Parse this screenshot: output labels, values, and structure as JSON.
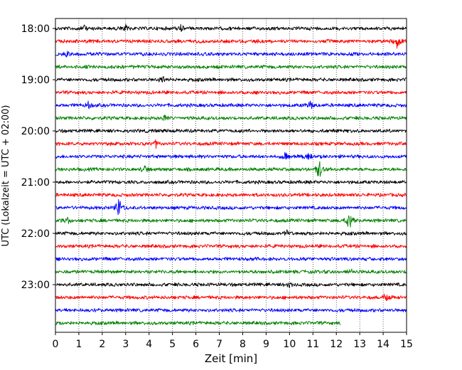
{
  "chart_data": {
    "type": "line",
    "title": "",
    "xlabel": "Zeit  [min]",
    "ylabel": "UTC (Lokalzeit = UTC + 02:00)",
    "xlim": [
      0,
      15
    ],
    "xticks": [
      0,
      1,
      2,
      3,
      4,
      5,
      6,
      7,
      8,
      9,
      10,
      11,
      12,
      13,
      14,
      15
    ],
    "xtick_labels": [
      "0",
      "1",
      "2",
      "3",
      "4",
      "5",
      "6",
      "7",
      "8",
      "9",
      "10",
      "11",
      "12",
      "13",
      "14",
      "15"
    ],
    "ytick_labels": [
      "18:00",
      "19:00",
      "20:00",
      "21:00",
      "22:00",
      "23:00"
    ],
    "grid": "vertical dotted",
    "color_cycle": [
      "#000000",
      "#ff0000",
      "#0000ff",
      "#008000"
    ],
    "traces": [
      {
        "start": "18:00",
        "color": "#000000",
        "end_min": 15,
        "events": [
          {
            "min": 1.2,
            "amp": 0.25
          },
          {
            "min": 3.0,
            "amp": 0.25
          },
          {
            "min": 5.35,
            "amp": 0.3
          }
        ]
      },
      {
        "start": "18:15",
        "color": "#ff0000",
        "end_min": 15,
        "events": [
          {
            "min": 14.6,
            "amp": 0.6
          }
        ]
      },
      {
        "start": "18:30",
        "color": "#0000ff",
        "end_min": 15,
        "events": [
          {
            "min": 0.5,
            "amp": 0.3
          }
        ]
      },
      {
        "start": "18:45",
        "color": "#008000",
        "end_min": 15,
        "events": []
      },
      {
        "start": "19:00",
        "color": "#000000",
        "end_min": 15,
        "events": [
          {
            "min": 4.6,
            "amp": 0.3
          }
        ]
      },
      {
        "start": "19:15",
        "color": "#ff0000",
        "end_min": 15,
        "events": []
      },
      {
        "start": "19:30",
        "color": "#0000ff",
        "end_min": 15,
        "events": [
          {
            "min": 1.4,
            "amp": 0.25
          },
          {
            "min": 10.9,
            "amp": 0.35
          }
        ]
      },
      {
        "start": "19:45",
        "color": "#008000",
        "end_min": 15,
        "events": [
          {
            "min": 4.7,
            "amp": 0.25
          }
        ]
      },
      {
        "start": "20:00",
        "color": "#000000",
        "end_min": 15,
        "events": []
      },
      {
        "start": "20:15",
        "color": "#ff0000",
        "end_min": 15,
        "events": [
          {
            "min": 4.3,
            "amp": 0.3
          }
        ]
      },
      {
        "start": "20:30",
        "color": "#0000ff",
        "end_min": 15,
        "events": [
          {
            "min": 9.8,
            "amp": 0.3
          },
          {
            "min": 10.8,
            "amp": 0.3
          }
        ]
      },
      {
        "start": "20:45",
        "color": "#008000",
        "end_min": 15,
        "events": [
          {
            "min": 3.8,
            "amp": 0.3
          },
          {
            "min": 11.25,
            "amp": 0.95
          }
        ]
      },
      {
        "start": "21:00",
        "color": "#000000",
        "end_min": 15,
        "events": []
      },
      {
        "start": "21:15",
        "color": "#ff0000",
        "end_min": 15,
        "events": []
      },
      {
        "start": "21:30",
        "color": "#0000ff",
        "end_min": 15,
        "events": [
          {
            "min": 2.7,
            "amp": 0.95
          }
        ]
      },
      {
        "start": "21:45",
        "color": "#008000",
        "end_min": 15,
        "events": [
          {
            "min": 0.5,
            "amp": 0.3
          },
          {
            "min": 12.55,
            "amp": 0.85
          }
        ]
      },
      {
        "start": "22:00",
        "color": "#000000",
        "end_min": 15,
        "events": [
          {
            "min": 9.9,
            "amp": 0.25
          }
        ]
      },
      {
        "start": "22:15",
        "color": "#ff0000",
        "end_min": 15,
        "events": []
      },
      {
        "start": "22:30",
        "color": "#0000ff",
        "end_min": 15,
        "events": []
      },
      {
        "start": "22:45",
        "color": "#008000",
        "end_min": 15,
        "events": [
          {
            "min": 12.6,
            "amp": 0.25
          }
        ]
      },
      {
        "start": "23:00",
        "color": "#000000",
        "end_min": 15,
        "events": [
          {
            "min": 10.0,
            "amp": 0.25
          }
        ]
      },
      {
        "start": "23:15",
        "color": "#ff0000",
        "end_min": 15,
        "events": [
          {
            "min": 14.1,
            "amp": 0.3
          }
        ]
      },
      {
        "start": "23:30",
        "color": "#0000ff",
        "end_min": 15,
        "events": []
      },
      {
        "start": "23:45",
        "color": "#008000",
        "end_min": 12.2,
        "events": []
      }
    ]
  }
}
